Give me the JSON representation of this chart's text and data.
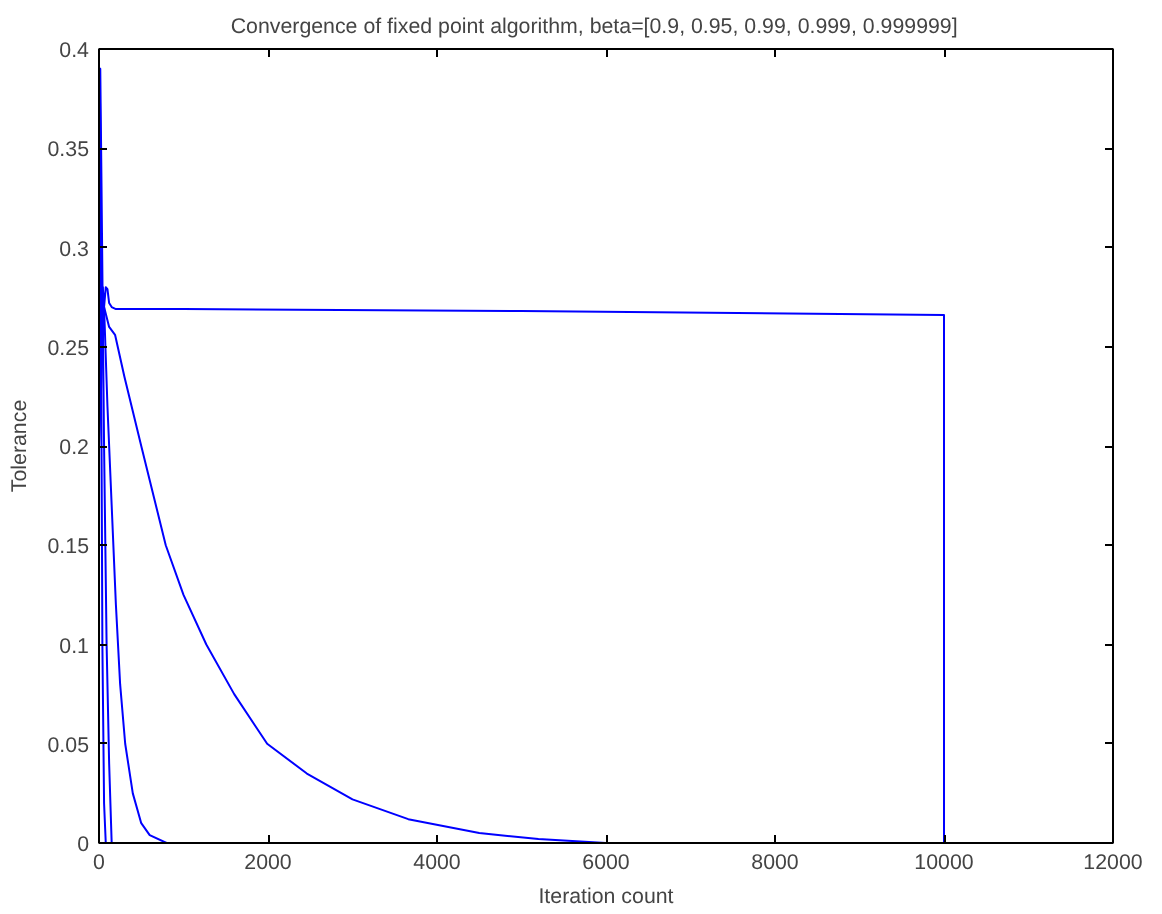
{
  "chart_data": {
    "type": "line",
    "title": "Convergence of fixed point algorithm, beta=[0.9,  0.95,  0.99,  0.999,  0.999999]",
    "xlabel": "Iteration count",
    "ylabel": "Tolerance",
    "xlim": [
      0,
      12000
    ],
    "ylim": [
      0,
      0.4
    ],
    "xticks": [
      0,
      2000,
      4000,
      6000,
      8000,
      10000,
      12000
    ],
    "yticks": [
      0,
      0.05,
      0.1,
      0.15,
      0.2,
      0.25,
      0.3,
      0.35,
      0.4
    ],
    "grid": false,
    "marker": "none",
    "line_style": "solid",
    "series": [
      {
        "color": "#0000ff",
        "x": [
          0,
          10,
          20,
          40,
          60,
          80
        ],
        "values": [
          0.2,
          0.39,
          0.3,
          0.1,
          0.02,
          0
        ]
      },
      {
        "color": "#0000ff",
        "x": [
          0,
          15,
          30,
          60,
          90,
          120,
          150
        ],
        "values": [
          0.25,
          0.39,
          0.33,
          0.2,
          0.1,
          0.04,
          0
        ]
      },
      {
        "color": "#0000ff",
        "x": [
          0,
          30,
          60,
          100,
          150,
          200,
          250,
          310,
          400,
          500,
          600,
          800
        ],
        "values": [
          0.2,
          0.28,
          0.27,
          0.22,
          0.17,
          0.12,
          0.08,
          0.05,
          0.025,
          0.01,
          0.004,
          0
        ]
      },
      {
        "color": "#0000ff",
        "x": [
          0,
          60,
          120,
          190,
          300,
          500,
          790,
          1000,
          1270,
          1600,
          1990,
          2460,
          3000,
          3660,
          4500,
          5200,
          6000,
          10000
        ],
        "values": [
          0.2,
          0.27,
          0.26,
          0.256,
          0.235,
          0.2,
          0.15,
          0.125,
          0.1,
          0.075,
          0.05,
          0.035,
          0.022,
          0.012,
          0.005,
          0.002,
          0,
          0
        ]
      },
      {
        "color": "#0000ff",
        "x": [
          0,
          10,
          20,
          30,
          45,
          60,
          80,
          100,
          120,
          150,
          200,
          1000,
          5000,
          10000,
          10000.1
        ],
        "values": [
          0.3,
          0.39,
          0.3,
          0.27,
          0.28,
          0.27,
          0.28,
          0.279,
          0.272,
          0.27,
          0.269,
          0.269,
          0.268,
          0.266,
          0
        ]
      }
    ]
  }
}
